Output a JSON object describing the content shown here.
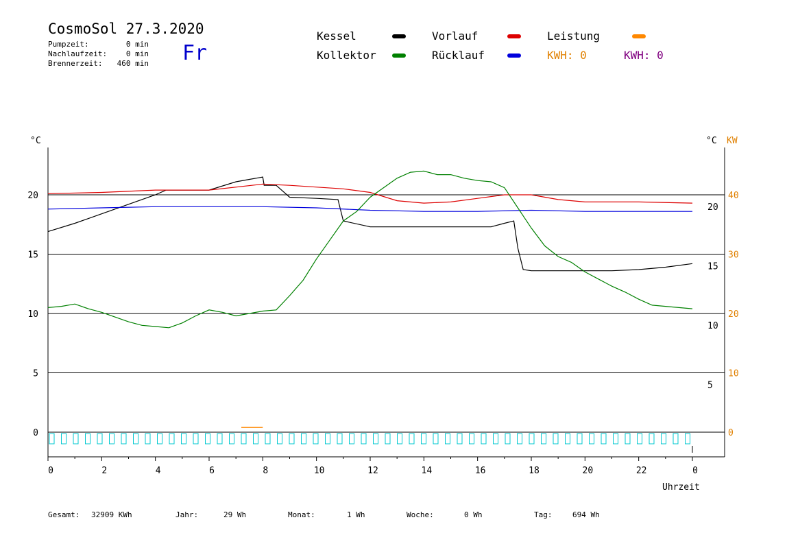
{
  "header": {
    "title": "CosmoSol 27.3.2020",
    "day": "Fr",
    "stats": [
      {
        "label": "Pumpzeit:",
        "value": "0 min"
      },
      {
        "label": "Nachlaufzeit:",
        "value": "0 min"
      },
      {
        "label": "Brennerzeit:",
        "value": "460 min"
      }
    ]
  },
  "legend": {
    "items": [
      {
        "label": "Kessel",
        "color": "#000000"
      },
      {
        "label": "Vorlauf",
        "color": "#dd0000"
      },
      {
        "label": "Leistung",
        "color": "#ff8800"
      },
      {
        "label": "Kollektor",
        "color": "#008000"
      },
      {
        "label": "Rücklauf",
        "color": "#0000dd"
      }
    ],
    "kwh": [
      {
        "label": "KWH: 0",
        "color": "#e08000"
      },
      {
        "label": "KWH: 0",
        "color": "#800080"
      }
    ]
  },
  "footer": [
    {
      "label": "Gesamt:",
      "value": "32909 KWh"
    },
    {
      "label": "Jahr:",
      "value": "29 Wh"
    },
    {
      "label": "Monat:",
      "value": "1 Wh"
    },
    {
      "label": "Woche:",
      "value": "0 Wh"
    },
    {
      "label": "Tag:",
      "value": "694 Wh"
    }
  ],
  "chart_data": {
    "type": "line",
    "xlabel": "Uhrzeit",
    "ylabel_left": "°C",
    "ylabel_right": "°C",
    "ylabel_right2": "KW",
    "x_ticks": [
      "0",
      "2",
      "4",
      "6",
      "8",
      "10",
      "12",
      "14",
      "16",
      "18",
      "20",
      "22",
      "0"
    ],
    "y_ticks_left": [
      "0",
      "5",
      "10",
      "15",
      "20"
    ],
    "y_ticks_right": [
      "5",
      "10",
      "15",
      "20"
    ],
    "y_ticks_kw": [
      "0",
      "10",
      "20",
      "30",
      "40"
    ],
    "xlim": [
      0,
      24
    ],
    "ylim": [
      -2,
      25
    ],
    "grid_y": [
      5,
      10,
      15,
      20
    ],
    "series": [
      {
        "name": "Kessel",
        "color": "#000000",
        "x": [
          0,
          1,
          2,
          3,
          4,
          4.4,
          6,
          7,
          7.5,
          8,
          8.05,
          8.5,
          9,
          10,
          10.8,
          11,
          12,
          14,
          16,
          16.5,
          17,
          17.35,
          17.5,
          17.7,
          18,
          19,
          20,
          21,
          22,
          23,
          24
        ],
        "y": [
          16.9,
          17.6,
          18.4,
          19.2,
          20.0,
          20.4,
          20.4,
          21.1,
          21.3,
          21.5,
          20.8,
          20.8,
          19.8,
          19.7,
          19.6,
          17.8,
          17.3,
          17.3,
          17.3,
          17.3,
          17.6,
          17.8,
          15.5,
          13.7,
          13.6,
          13.6,
          13.6,
          13.6,
          13.7,
          13.9,
          14.2
        ]
      },
      {
        "name": "Vorlauf",
        "color": "#dd0000",
        "x": [
          0,
          2,
          4,
          6,
          8,
          9,
          11,
          12,
          13,
          14,
          15,
          16,
          17,
          18,
          19,
          20,
          22,
          24
        ],
        "y": [
          20.1,
          20.2,
          20.4,
          20.4,
          20.9,
          20.8,
          20.5,
          20.2,
          19.5,
          19.3,
          19.4,
          19.7,
          20.0,
          20.0,
          19.6,
          19.4,
          19.4,
          19.3
        ]
      },
      {
        "name": "Rücklauf",
        "color": "#0000dd",
        "x": [
          0,
          2,
          4,
          6,
          8,
          10,
          12,
          14,
          16,
          18,
          20,
          22,
          24
        ],
        "y": [
          18.8,
          18.9,
          19.0,
          19.0,
          19.0,
          18.9,
          18.7,
          18.6,
          18.6,
          18.7,
          18.6,
          18.6,
          18.6
        ]
      },
      {
        "name": "Kollektor",
        "color": "#008000",
        "x": [
          0,
          0.5,
          1,
          1.5,
          2,
          2.5,
          3,
          3.5,
          4,
          4.5,
          5,
          5.5,
          6,
          6.5,
          7,
          7.5,
          8,
          8.5,
          9,
          9.5,
          10,
          10.5,
          11,
          11.5,
          12,
          12.5,
          13,
          13.5,
          14,
          14.5,
          15,
          15.5,
          16,
          16.5,
          17,
          17.5,
          18,
          18.5,
          19,
          19.5,
          20,
          20.5,
          21,
          21.5,
          22,
          22.5,
          23,
          23.5,
          24
        ],
        "y": [
          10.5,
          10.6,
          10.8,
          10.4,
          10.1,
          9.7,
          9.3,
          9.0,
          8.9,
          8.8,
          9.2,
          9.8,
          10.3,
          10.1,
          9.8,
          10.0,
          10.2,
          10.3,
          11.5,
          12.8,
          14.6,
          16.2,
          17.8,
          18.6,
          19.8,
          20.6,
          21.4,
          21.9,
          22.0,
          21.7,
          21.7,
          21.4,
          21.2,
          21.1,
          20.6,
          18.9,
          17.2,
          15.7,
          14.8,
          14.3,
          13.5,
          12.9,
          12.3,
          11.8,
          11.2,
          10.7,
          10.6,
          10.5,
          10.4
        ]
      },
      {
        "name": "Leistung",
        "color": "#ff8800",
        "x": [
          7.2,
          8.0
        ],
        "y": [
          0.4,
          0.4
        ]
      }
    ]
  }
}
